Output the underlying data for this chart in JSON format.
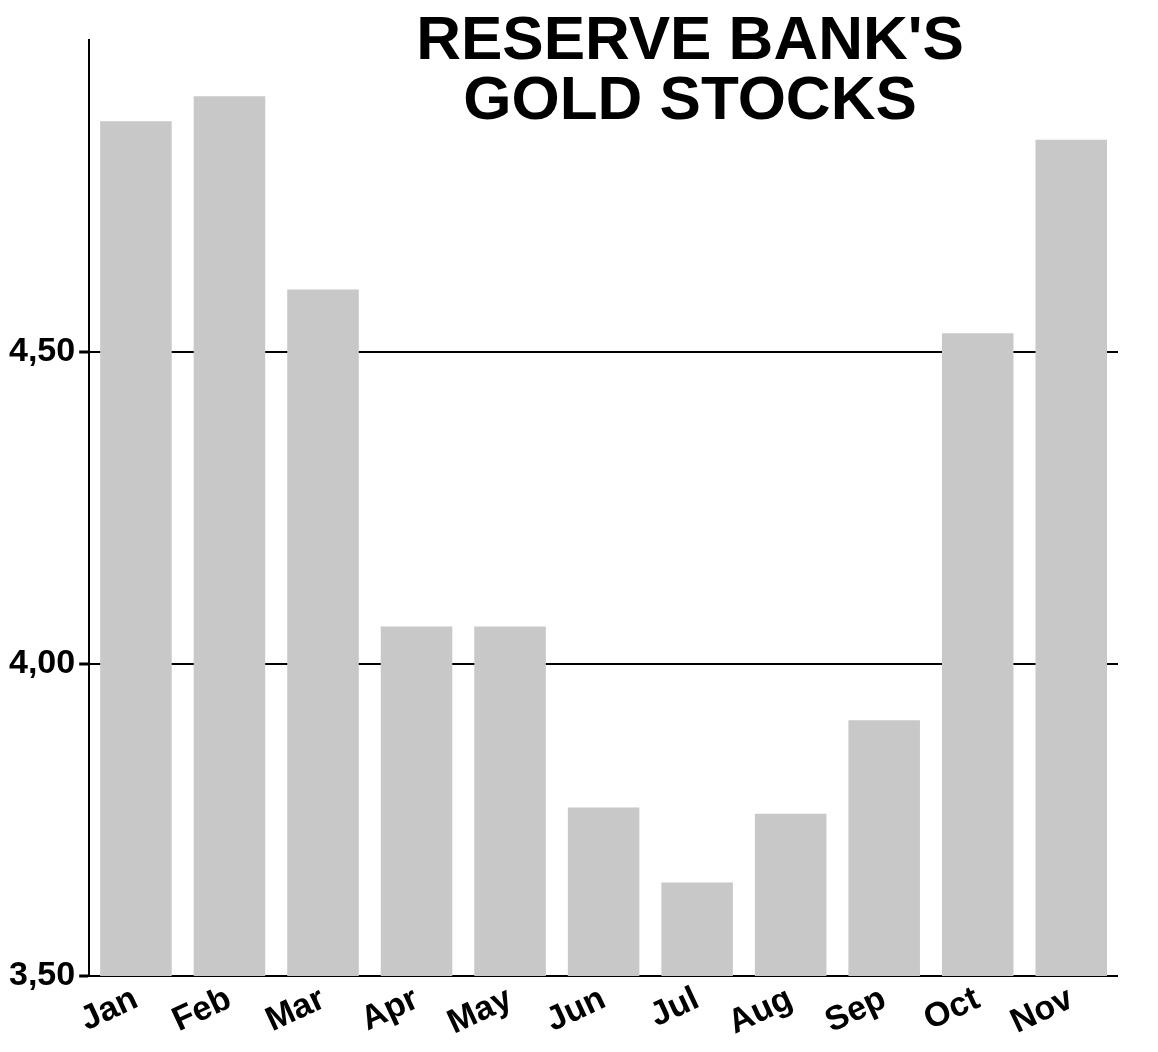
{
  "chart_data": {
    "type": "bar",
    "title": "RESERVE BANK'S GOLD STOCKS",
    "categories": [
      "Jan",
      "Feb",
      "Mar",
      "Apr",
      "May",
      "Jun",
      "Jul",
      "Aug",
      "Sep",
      "Oct",
      "Nov"
    ],
    "values": [
      4.87,
      4.91,
      4.6,
      4.06,
      4.06,
      3.77,
      3.65,
      3.76,
      3.91,
      4.53,
      4.84
    ],
    "color": "#c8c8c8",
    "ylim": [
      3.5,
      5.0
    ],
    "yticks": [
      {
        "value": 3.5,
        "label": "3,50"
      },
      {
        "value": 4.0,
        "label": "4,00"
      },
      {
        "value": 4.5,
        "label": "4,50"
      }
    ],
    "grid": "y",
    "legend": false
  }
}
